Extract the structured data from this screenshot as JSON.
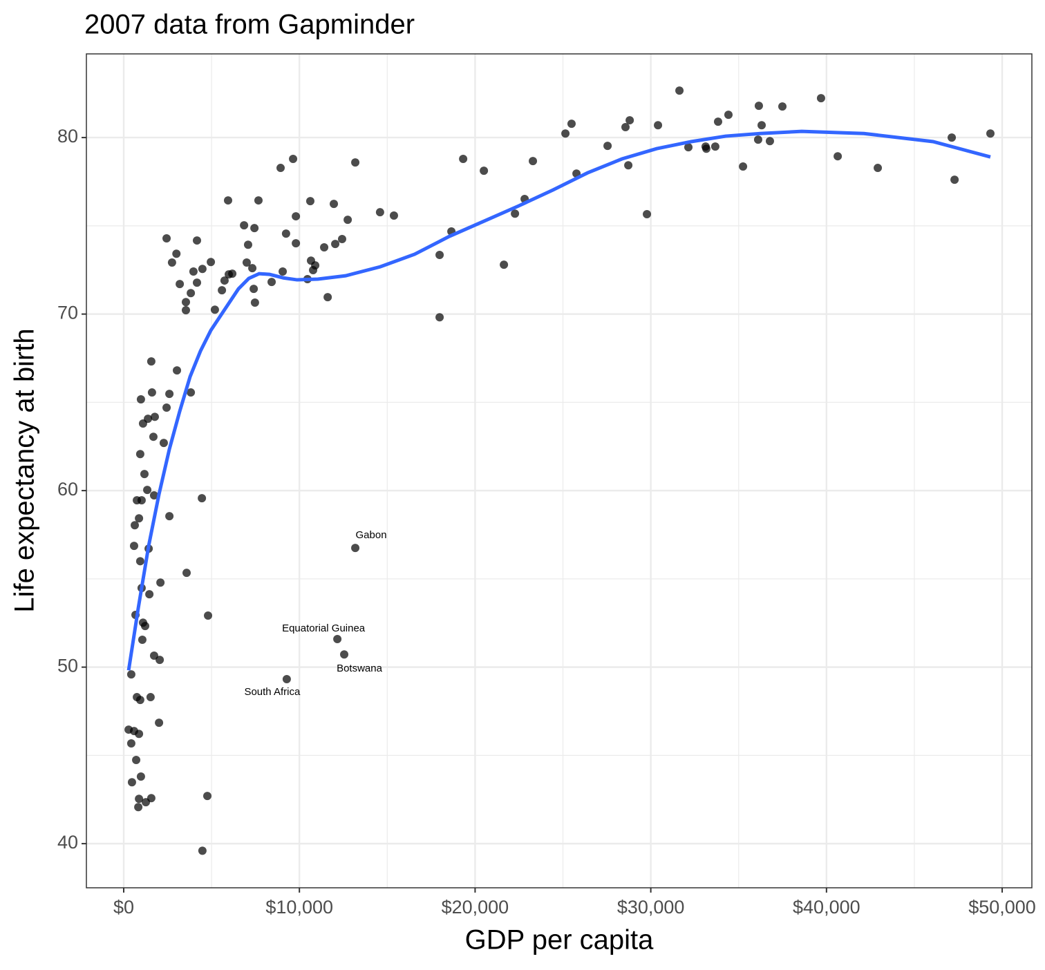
{
  "chart_data": {
    "type": "scatter",
    "title": "2007 data from Gapminder",
    "x_label": "GDP per capita",
    "y_label": "Life expectancy at birth",
    "xlim": [
      -2124,
      51690
    ],
    "ylim": [
      37.5,
      84.74
    ],
    "xticks": [
      {
        "value": 0,
        "label": "$0"
      },
      {
        "value": 10000,
        "label": "$10,000"
      },
      {
        "value": 20000,
        "label": "$20,000"
      },
      {
        "value": 30000,
        "label": "$30,000"
      },
      {
        "value": 40000,
        "label": "$40,000"
      },
      {
        "value": 50000,
        "label": "$50,000"
      }
    ],
    "yticks": [
      40,
      50,
      60,
      70,
      80
    ],
    "grid": true,
    "color": "#000000",
    "x": [
      31630,
      39690,
      36150,
      37490,
      34420,
      33830,
      36310,
      28800,
      28560,
      25490,
      25140,
      30410,
      49330,
      47130,
      36110,
      36780,
      27540,
      32140,
      33120,
      33160,
      33670,
      40640,
      19320,
      42920,
      28720,
      23290,
      20500,
      35250,
      25770,
      47290,
      22820,
      22270,
      29780,
      18650,
      17980,
      21640,
      17980,
      13180,
      9640,
      8930,
      5940,
      7670,
      10620,
      11960,
      14590,
      15380,
      9800,
      12750,
      6850,
      7440,
      9240,
      12430,
      12040,
      9800,
      7080,
      11410,
      10660,
      10900,
      10780,
      7000,
      7320,
      9050,
      10460,
      8420,
      7400,
      11610,
      7470,
      6180,
      5980,
      5740,
      5590,
      5190,
      4960,
      4480,
      3970,
      4170,
      4170,
      2440,
      3000,
      2750,
      3190,
      3820,
      3540,
      3540,
      3030,
      3820,
      2600,
      2440,
      1570,
      1610,
      1770,
      1380,
      980,
      1100,
      1690,
      2280,
      940,
      1180,
      1340,
      1730,
      750,
      1020,
      4450,
      2600,
      870,
      630,
      590,
      13180,
      1420,
      940,
      2090,
      1020,
      3580,
      1460,
      670,
      4800,
      1100,
      1220,
      1060,
      12160,
      12550,
      1730,
      2050,
      430,
      9280,
      750,
      1530,
      940,
      2010,
      280,
      590,
      870,
      430,
      710,
      980,
      470,
      4760,
      870,
      1570,
      1260,
      830,
      4480
    ],
    "y": [
      82.66,
      82.23,
      81.8,
      81.76,
      81.29,
      80.9,
      80.7,
      80.98,
      80.59,
      80.78,
      80.23,
      80.7,
      80.23,
      80.0,
      79.88,
      79.8,
      79.53,
      79.45,
      79.49,
      79.37,
      79.49,
      78.94,
      78.79,
      78.28,
      78.43,
      78.67,
      78.12,
      78.36,
      77.96,
      77.61,
      76.52,
      75.69,
      75.66,
      74.68,
      73.35,
      72.8,
      69.82,
      78.59,
      78.79,
      78.28,
      76.44,
      76.44,
      76.4,
      76.24,
      75.77,
      75.58,
      75.54,
      75.34,
      75.03,
      74.87,
      74.56,
      74.25,
      73.97,
      74.01,
      73.93,
      73.78,
      73.03,
      72.76,
      72.49,
      72.92,
      72.6,
      72.41,
      71.98,
      71.82,
      71.43,
      70.96,
      70.65,
      72.29,
      72.25,
      71.9,
      71.35,
      70.25,
      72.95,
      72.56,
      72.41,
      71.78,
      74.17,
      74.29,
      73.42,
      72.92,
      71.7,
      71.19,
      70.68,
      70.22,
      66.81,
      65.56,
      65.48,
      64.7,
      67.32,
      65.56,
      64.18,
      64.07,
      65.17,
      63.8,
      63.05,
      62.7,
      62.07,
      60.94,
      60.04,
      59.73,
      59.45,
      59.45,
      59.57,
      58.55,
      58.43,
      58.04,
      56.87,
      56.75,
      56.71,
      56.0,
      54.79,
      54.48,
      55.34,
      54.13,
      52.96,
      52.92,
      52.52,
      52.33,
      51.55,
      51.59,
      50.72,
      50.65,
      50.41,
      49.59,
      49.32,
      48.3,
      48.3,
      48.14,
      46.85,
      46.46,
      46.38,
      46.22,
      45.68,
      44.74,
      43.8,
      43.48,
      42.7,
      42.54,
      42.58,
      42.35,
      42.07,
      39.6
    ],
    "smooth": {
      "color": "#3366ff",
      "x": [
        280,
        830,
        1420,
        2010,
        2600,
        3190,
        3780,
        4370,
        4960,
        5740,
        6530,
        7120,
        7710,
        8300,
        9090,
        9870,
        11050,
        12630,
        14600,
        16560,
        18530,
        20500,
        22460,
        24430,
        26400,
        28360,
        30330,
        32300,
        34260,
        36230,
        38590,
        42130,
        46070,
        49330
      ],
      "y": [
        49.82,
        53.35,
        56.87,
        59.8,
        62.35,
        64.5,
        66.46,
        67.91,
        69.08,
        70.25,
        71.43,
        72.02,
        72.29,
        72.25,
        72.05,
        71.94,
        71.98,
        72.17,
        72.68,
        73.39,
        74.4,
        75.26,
        76.12,
        77.03,
        78.0,
        78.79,
        79.37,
        79.77,
        80.08,
        80.23,
        80.35,
        80.23,
        79.77,
        78.9
      ]
    },
    "annotations": [
      {
        "text": "Gabon",
        "x": 13180,
        "y": 56.75
      },
      {
        "text": "Equatorial Guinea",
        "x": 12160,
        "y": 51.59
      },
      {
        "text": "Botswana",
        "x": 12550,
        "y": 50.72
      },
      {
        "text": "South Africa",
        "x": 9280,
        "y": 49.32
      }
    ]
  }
}
